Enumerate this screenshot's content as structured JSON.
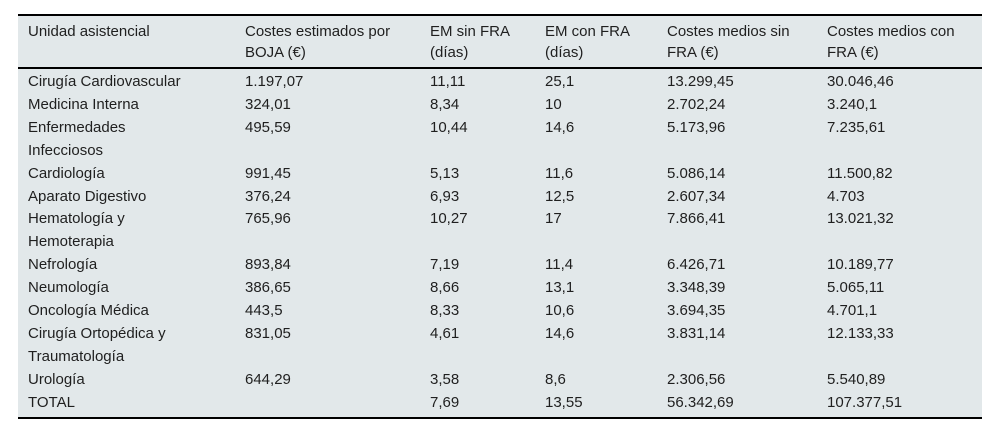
{
  "colors": {
    "page_bg": "#ffffff",
    "table_bg": "#e2e8ea",
    "rule": "#000000",
    "text": "#1f1f1f"
  },
  "table": {
    "columns": [
      {
        "label": "Unidad asistencial"
      },
      {
        "label": "Costes estimados por\nBOJA (€)"
      },
      {
        "label": "EM sin FRA\n(días)"
      },
      {
        "label": "EM con FRA\n(días)"
      },
      {
        "label": "Costes medios sin\nFRA (€)"
      },
      {
        "label": "Costes medios con\nFRA (€)"
      }
    ],
    "rows": [
      {
        "cells": [
          "Cirugía Cardiovascular",
          "1.197,07",
          "11,11",
          "25,1",
          "13.299,45",
          "30.046,46"
        ]
      },
      {
        "cells": [
          "Medicina Interna",
          "324,01",
          "8,34",
          "10",
          "2.702,24",
          "3.240,1"
        ]
      },
      {
        "cells": [
          "Enfermedades\nInfecciosos",
          "495,59",
          "10,44",
          "14,6",
          "5.173,96",
          "7.235,61"
        ]
      },
      {
        "cells": [
          "Cardiología",
          "991,45",
          "5,13",
          "11,6",
          "5.086,14",
          "11.500,82"
        ]
      },
      {
        "cells": [
          "Aparato Digestivo",
          "376,24",
          "6,93",
          "12,5",
          "2.607,34",
          "4.703"
        ]
      },
      {
        "cells": [
          "Hematología y\nHemoterapia",
          "765,96",
          "10,27",
          "17",
          "7.866,41",
          "13.021,32"
        ]
      },
      {
        "cells": [
          "Nefrología",
          "893,84",
          "7,19",
          "11,4",
          "6.426,71",
          "10.189,77"
        ]
      },
      {
        "cells": [
          "Neumología",
          "386,65",
          "8,66",
          "13,1",
          "3.348,39",
          "5.065,11"
        ]
      },
      {
        "cells": [
          "Oncología Médica",
          "443,5",
          "8,33",
          "10,6",
          "3.694,35",
          "4.701,1"
        ]
      },
      {
        "cells": [
          "Cirugía Ortopédica y\nTraumatología",
          "831,05",
          "4,61",
          "14,6",
          "3.831,14",
          "12.133,33"
        ]
      },
      {
        "cells": [
          "Urología",
          "644,29",
          "3,58",
          "8,6",
          "2.306,56",
          "5.540,89"
        ]
      },
      {
        "cells": [
          "TOTAL",
          "",
          "7,69",
          "13,55",
          "56.342,69",
          "107.377,51"
        ]
      }
    ]
  }
}
